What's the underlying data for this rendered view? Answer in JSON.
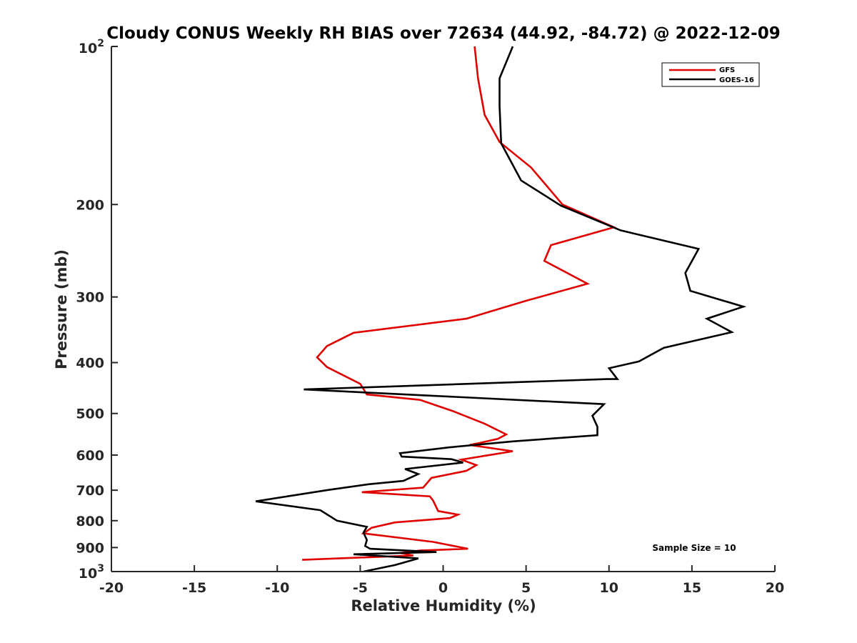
{
  "chart_data": {
    "type": "line",
    "title": "Cloudy CONUS Weekly RH BIAS over 72634 (44.92, -84.72) @ 2022-12-09",
    "xlabel": "Relative Humidity (%)",
    "ylabel": "Pressure (mb)",
    "xlim": [
      -20,
      20
    ],
    "ylim": [
      100,
      1000
    ],
    "y_scale": "log",
    "y_reversed": true,
    "grid": false,
    "legend_position": "top-right",
    "x_ticks": [
      {
        "value": -20,
        "label": "-20"
      },
      {
        "value": -15,
        "label": "-15"
      },
      {
        "value": -10,
        "label": "-10"
      },
      {
        "value": -5,
        "label": "-5"
      },
      {
        "value": 0,
        "label": "0"
      },
      {
        "value": 5,
        "label": "5"
      },
      {
        "value": 10,
        "label": "10"
      },
      {
        "value": 15,
        "label": "15"
      },
      {
        "value": 20,
        "label": "20"
      }
    ],
    "y_ticks": [
      {
        "value": 100,
        "base": "10",
        "exp": "2"
      },
      {
        "value": 200,
        "label": "200"
      },
      {
        "value": 300,
        "label": "300"
      },
      {
        "value": 400,
        "label": "400"
      },
      {
        "value": 500,
        "label": "500"
      },
      {
        "value": 600,
        "label": "600"
      },
      {
        "value": 700,
        "label": "700"
      },
      {
        "value": 800,
        "label": "800"
      },
      {
        "value": 900,
        "label": "900"
      },
      {
        "value": 1000,
        "base": "10",
        "exp": "3"
      }
    ],
    "series": [
      {
        "name": "GFS",
        "color": "#e00000",
        "x": [
          1.9,
          2.1,
          2.5,
          3.4,
          5.3,
          7.2,
          10.3,
          6.5,
          6.1,
          8.7,
          5.0,
          1.4,
          -5.4,
          -7.0,
          -7.6,
          -7.0,
          -5.0,
          -4.6,
          -1.4,
          0.6,
          2.5,
          3.8,
          3.3,
          2.2,
          1.6,
          4.2,
          1.1,
          2.0,
          1.4,
          -0.7,
          -1.2,
          -4.9,
          -0.8,
          -0.6,
          -0.3,
          0.9,
          0.4,
          -2.9,
          -4.3,
          -4.8,
          -0.6,
          1.5,
          -1.4,
          -2.6,
          -1.8,
          -8.5
        ],
        "y": [
          100,
          115,
          135,
          152,
          170,
          200,
          221,
          239,
          256,
          283,
          305,
          330,
          351,
          372,
          391,
          408,
          439,
          460,
          471,
          495,
          523,
          548,
          559,
          569,
          574,
          590,
          612,
          627,
          643,
          663,
          692,
          706,
          719,
          733,
          767,
          779,
          791,
          806,
          825,
          846,
          878,
          905,
          912,
          922,
          932,
          950
        ]
      },
      {
        "name": "GOES-16",
        "color": "#000000",
        "x": [
          4.2,
          3.4,
          3.4,
          3.5,
          4.7,
          7.1,
          10.7,
          15.4,
          14.6,
          14.9,
          18.1,
          15.9,
          17.4,
          13.3,
          11.8,
          10.0,
          10.5,
          9.9,
          -8.4,
          9.7,
          9.0,
          9.3,
          9.3,
          4.2,
          0.4,
          -2.6,
          -2.5,
          0.5,
          1.2,
          -2.3,
          -1.5,
          -2.4,
          -4.5,
          -6.9,
          -11.3,
          -7.4,
          -6.4,
          -4.6,
          -4.8,
          -4.6,
          -4.7,
          -4.4,
          -0.4,
          -5.4,
          -1.5,
          -2.9,
          -4.8
        ],
        "y": [
          100,
          115,
          130,
          153,
          180,
          201,
          224,
          243,
          270,
          292,
          313,
          330,
          350,
          375,
          398,
          410,
          430,
          430,
          450,
          480,
          505,
          530,
          550,
          565,
          580,
          595,
          604,
          611,
          620,
          638,
          652,
          672,
          682,
          699,
          735,
          764,
          800,
          822,
          843,
          871,
          894,
          905,
          918,
          927,
          944,
          972,
          1000
        ]
      }
    ],
    "annotation": "Sample Size = 10"
  }
}
